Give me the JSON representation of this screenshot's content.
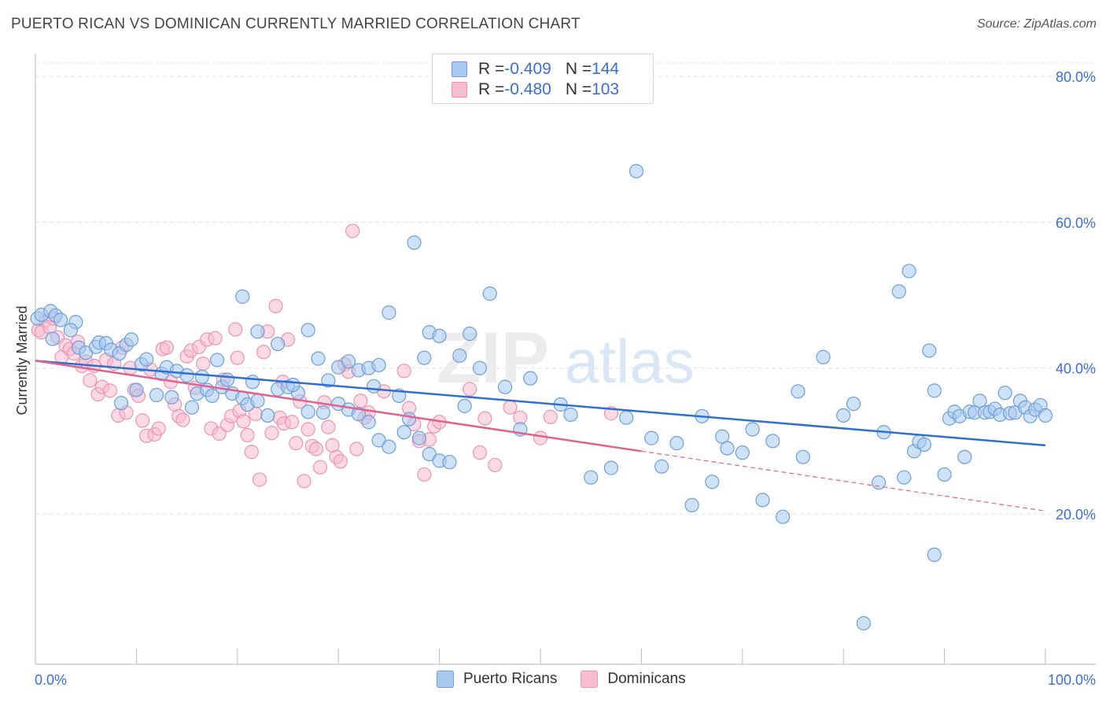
{
  "title": "PUERTO RICAN VS DOMINICAN CURRENTLY MARRIED CORRELATION CHART",
  "source": "Source: ZipAtlas.com",
  "legend_top": [
    {
      "r_label": "R = ",
      "r_value": "-0.409",
      "n_label": "N = ",
      "n_value": "144"
    },
    {
      "r_label": "R = ",
      "r_value": "-0.480",
      "n_label": "N = ",
      "n_value": "103"
    }
  ],
  "legend_bottom": [
    {
      "label": "Puerto Ricans"
    },
    {
      "label": "Dominicans"
    }
  ],
  "colors": {
    "blue_fill": "#a8c8ef",
    "blue_stroke": "#6d9fd8",
    "blue_line": "#2f6fd0",
    "pink_fill": "#f6bcd0",
    "pink_stroke": "#ee93b2",
    "pink_line": "#e0628f",
    "axis_label": "#3a6fd0",
    "grid": "#e2e2e2"
  },
  "chart_data": {
    "type": "scatter",
    "title": "PUERTO RICAN VS DOMINICAN CURRENTLY MARRIED CORRELATION CHART",
    "xlabel": "",
    "ylabel": "Currently Married",
    "xlim": [
      0,
      100
    ],
    "ylim": [
      0,
      80
    ],
    "x_tick_labels": [
      "0.0%",
      "100.0%"
    ],
    "y_ticks": [
      20,
      40,
      60,
      80
    ],
    "y_tick_labels": [
      "20.0%",
      "40.0%",
      "60.0%",
      "80.0%"
    ],
    "grid": "horizontal dashed",
    "watermark": "ZIPatlas",
    "series": [
      {
        "name": "Puerto Ricans",
        "R": -0.409,
        "N": 144,
        "trend": {
          "x": [
            0,
            100
          ],
          "y": [
            41.0,
            29.4
          ]
        },
        "points": [
          [
            0.2,
            46.8
          ],
          [
            0.6,
            47.3
          ],
          [
            1.5,
            47.8
          ],
          [
            2.0,
            47.2
          ],
          [
            2.5,
            46.6
          ],
          [
            4.0,
            46.3
          ],
          [
            1.7,
            44.0
          ],
          [
            3.5,
            45.2
          ],
          [
            4.3,
            42.8
          ],
          [
            5.0,
            42.1
          ],
          [
            6.0,
            42.9
          ],
          [
            6.3,
            43.5
          ],
          [
            7.0,
            43.4
          ],
          [
            7.5,
            42.5
          ],
          [
            8.3,
            42.0
          ],
          [
            9.0,
            43.2
          ],
          [
            9.5,
            43.9
          ],
          [
            10.5,
            40.5
          ],
          [
            11.0,
            41.2
          ],
          [
            12.5,
            39.2
          ],
          [
            13.0,
            40.1
          ],
          [
            14.0,
            39.6
          ],
          [
            15.0,
            39.0
          ],
          [
            8.5,
            35.2
          ],
          [
            10.0,
            37.0
          ],
          [
            12.0,
            36.3
          ],
          [
            13.5,
            36.0
          ],
          [
            15.5,
            34.6
          ],
          [
            16.0,
            36.5
          ],
          [
            17.0,
            37.0
          ],
          [
            17.5,
            36.2
          ],
          [
            18.5,
            37.4
          ],
          [
            19.5,
            36.5
          ],
          [
            20.5,
            35.9
          ],
          [
            21.0,
            35.0
          ],
          [
            22.0,
            35.5
          ],
          [
            23.0,
            33.5
          ],
          [
            24.0,
            37.1
          ],
          [
            25.0,
            37.4
          ],
          [
            26.0,
            36.6
          ],
          [
            27.0,
            34.0
          ],
          [
            28.5,
            33.9
          ],
          [
            30.0,
            35.1
          ],
          [
            31.0,
            34.3
          ],
          [
            32.0,
            33.7
          ],
          [
            33.0,
            32.6
          ],
          [
            34.0,
            30.1
          ],
          [
            35.0,
            29.2
          ],
          [
            36.5,
            31.2
          ],
          [
            37.0,
            33.0
          ],
          [
            38.0,
            30.4
          ],
          [
            39.0,
            28.2
          ],
          [
            40.0,
            27.3
          ],
          [
            41.0,
            27.1
          ],
          [
            20.5,
            49.8
          ],
          [
            22.0,
            45.0
          ],
          [
            24.0,
            43.3
          ],
          [
            27.0,
            45.2
          ],
          [
            28.0,
            41.3
          ],
          [
            30.0,
            40.1
          ],
          [
            31.0,
            40.9
          ],
          [
            32.0,
            39.7
          ],
          [
            33.0,
            40.0
          ],
          [
            34.0,
            40.4
          ],
          [
            35.0,
            47.6
          ],
          [
            37.5,
            57.2
          ],
          [
            38.5,
            41.4
          ],
          [
            39.0,
            44.9
          ],
          [
            40.0,
            44.4
          ],
          [
            42.0,
            41.7
          ],
          [
            43.0,
            44.7
          ],
          [
            44.0,
            40.0
          ],
          [
            45.0,
            50.2
          ],
          [
            49.0,
            38.6
          ],
          [
            52.0,
            35.0
          ],
          [
            55.0,
            25.0
          ],
          [
            57.0,
            26.3
          ],
          [
            59.5,
            67.0
          ],
          [
            61.0,
            30.4
          ],
          [
            62.0,
            26.5
          ],
          [
            65.0,
            21.2
          ],
          [
            66.0,
            33.4
          ],
          [
            67.0,
            24.4
          ],
          [
            68.0,
            30.6
          ],
          [
            68.5,
            29.0
          ],
          [
            71.0,
            31.6
          ],
          [
            72.0,
            21.9
          ],
          [
            73.0,
            30.0
          ],
          [
            74.0,
            19.6
          ],
          [
            76.0,
            27.8
          ],
          [
            78.0,
            41.5
          ],
          [
            81.0,
            35.1
          ],
          [
            82.0,
            5.0
          ],
          [
            83.5,
            24.3
          ],
          [
            85.5,
            50.5
          ],
          [
            86.5,
            53.3
          ],
          [
            86.0,
            25.0
          ],
          [
            87.0,
            28.6
          ],
          [
            87.5,
            29.9
          ],
          [
            88.0,
            29.5
          ],
          [
            88.5,
            42.4
          ],
          [
            89.0,
            36.9
          ],
          [
            89.0,
            14.4
          ],
          [
            90.0,
            25.4
          ],
          [
            90.5,
            33.1
          ],
          [
            91.0,
            34.0
          ],
          [
            91.5,
            33.4
          ],
          [
            92.0,
            27.8
          ],
          [
            92.5,
            34.0
          ],
          [
            93.0,
            33.9
          ],
          [
            93.5,
            35.5
          ],
          [
            94.0,
            33.9
          ],
          [
            94.5,
            34.0
          ],
          [
            95.0,
            34.4
          ],
          [
            95.5,
            33.6
          ],
          [
            96.0,
            36.6
          ],
          [
            96.5,
            33.8
          ],
          [
            97.0,
            33.9
          ],
          [
            97.5,
            35.5
          ],
          [
            98.0,
            34.6
          ],
          [
            98.5,
            33.4
          ],
          [
            99.0,
            34.3
          ],
          [
            99.5,
            34.9
          ],
          [
            100.0,
            33.5
          ],
          [
            16.5,
            38.8
          ],
          [
            18.0,
            41.1
          ],
          [
            19.0,
            38.4
          ],
          [
            21.5,
            38.1
          ],
          [
            25.5,
            37.7
          ],
          [
            29.0,
            38.3
          ],
          [
            33.5,
            37.5
          ],
          [
            36.0,
            36.2
          ],
          [
            42.5,
            34.8
          ],
          [
            46.5,
            37.4
          ],
          [
            48.0,
            31.6
          ],
          [
            53.0,
            33.6
          ],
          [
            58.5,
            33.2
          ],
          [
            63.5,
            29.7
          ],
          [
            70.0,
            28.4
          ],
          [
            75.5,
            36.8
          ],
          [
            80.0,
            33.5
          ],
          [
            84.0,
            31.2
          ]
        ]
      },
      {
        "name": "Dominicans",
        "R": -0.48,
        "N": 103,
        "trend": {
          "x": [
            0,
            60
          ],
          "y": [
            41.0,
            28.6
          ]
        },
        "trend_dashed": {
          "x": [
            60,
            100
          ],
          "y": [
            28.6,
            20.4
          ]
        },
        "points": [
          [
            0.3,
            45.2
          ],
          [
            0.6,
            44.9
          ],
          [
            1.0,
            46.5
          ],
          [
            1.4,
            45.6
          ],
          [
            1.8,
            46.8
          ],
          [
            2.2,
            44.2
          ],
          [
            2.6,
            41.5
          ],
          [
            3.0,
            43.1
          ],
          [
            3.4,
            42.6
          ],
          [
            3.8,
            42.0
          ],
          [
            4.2,
            43.6
          ],
          [
            4.6,
            40.3
          ],
          [
            5.0,
            40.9
          ],
          [
            5.4,
            38.3
          ],
          [
            5.8,
            40.3
          ],
          [
            6.2,
            36.4
          ],
          [
            6.6,
            37.4
          ],
          [
            7.0,
            41.1
          ],
          [
            7.4,
            36.9
          ],
          [
            7.8,
            40.6
          ],
          [
            8.2,
            33.5
          ],
          [
            8.6,
            42.8
          ],
          [
            9.0,
            33.9
          ],
          [
            9.4,
            40.0
          ],
          [
            9.8,
            37.0
          ],
          [
            10.2,
            36.2
          ],
          [
            10.6,
            32.8
          ],
          [
            11.0,
            30.7
          ],
          [
            11.4,
            39.8
          ],
          [
            11.8,
            30.9
          ],
          [
            12.2,
            31.7
          ],
          [
            12.6,
            42.6
          ],
          [
            13.0,
            42.8
          ],
          [
            13.4,
            38.1
          ],
          [
            13.8,
            35.0
          ],
          [
            14.2,
            33.4
          ],
          [
            14.6,
            32.9
          ],
          [
            15.0,
            41.6
          ],
          [
            15.4,
            42.4
          ],
          [
            15.8,
            37.3
          ],
          [
            16.2,
            42.9
          ],
          [
            16.6,
            40.6
          ],
          [
            17.0,
            43.9
          ],
          [
            17.4,
            31.7
          ],
          [
            17.8,
            44.1
          ],
          [
            18.2,
            31.0
          ],
          [
            18.6,
            38.4
          ],
          [
            19.0,
            32.2
          ],
          [
            19.4,
            33.4
          ],
          [
            19.8,
            45.3
          ],
          [
            20.2,
            34.1
          ],
          [
            20.6,
            32.7
          ],
          [
            21.0,
            30.8
          ],
          [
            21.4,
            28.5
          ],
          [
            21.8,
            33.7
          ],
          [
            22.2,
            24.7
          ],
          [
            22.6,
            42.2
          ],
          [
            23.0,
            45.0
          ],
          [
            23.4,
            31.1
          ],
          [
            23.8,
            48.5
          ],
          [
            24.2,
            33.2
          ],
          [
            24.6,
            32.4
          ],
          [
            25.0,
            43.9
          ],
          [
            25.4,
            32.6
          ],
          [
            25.8,
            29.7
          ],
          [
            26.2,
            35.4
          ],
          [
            26.6,
            24.5
          ],
          [
            27.0,
            31.6
          ],
          [
            27.4,
            29.3
          ],
          [
            27.8,
            28.9
          ],
          [
            28.2,
            26.4
          ],
          [
            28.6,
            35.3
          ],
          [
            29.0,
            31.9
          ],
          [
            29.4,
            29.4
          ],
          [
            29.8,
            27.8
          ],
          [
            30.2,
            27.2
          ],
          [
            30.6,
            40.5
          ],
          [
            31.0,
            39.5
          ],
          [
            31.4,
            58.8
          ],
          [
            31.8,
            28.9
          ],
          [
            32.2,
            35.5
          ],
          [
            32.6,
            33.2
          ],
          [
            33.0,
            33.9
          ],
          [
            36.5,
            39.6
          ],
          [
            37.0,
            34.5
          ],
          [
            37.5,
            32.3
          ],
          [
            38.0,
            30.0
          ],
          [
            38.5,
            25.4
          ],
          [
            39.0,
            30.2
          ],
          [
            39.5,
            32.0
          ],
          [
            40.0,
            32.6
          ],
          [
            43.0,
            37.1
          ],
          [
            44.0,
            28.4
          ],
          [
            44.5,
            33.1
          ],
          [
            47.0,
            34.6
          ],
          [
            48.0,
            33.2
          ],
          [
            50.0,
            30.4
          ],
          [
            51.0,
            33.3
          ],
          [
            57.0,
            33.8
          ],
          [
            20.0,
            41.4
          ],
          [
            24.5,
            38.1
          ],
          [
            34.5,
            36.8
          ],
          [
            45.5,
            26.7
          ]
        ]
      }
    ]
  }
}
